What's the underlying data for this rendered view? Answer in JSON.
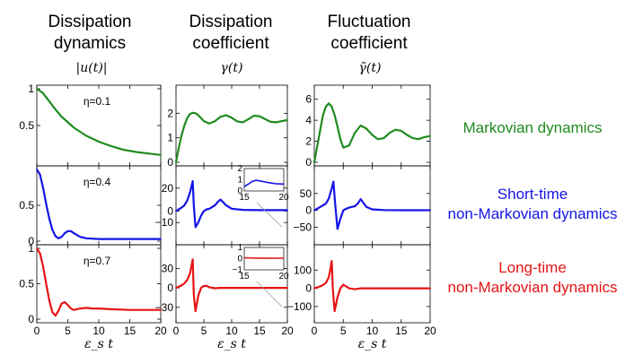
{
  "columns": [
    {
      "title_line1": "Dissipation",
      "title_line2": "dynamics",
      "symbol": "|u(t)|"
    },
    {
      "title_line1": "Dissipation",
      "title_line2": "coefficient",
      "symbol": "γ(t)"
    },
    {
      "title_line1": "Fluctuation",
      "title_line2": "coefficient",
      "symbol": "γ̃(t)"
    }
  ],
  "rows": [
    {
      "eta_label": "η=0.1",
      "color": "#1f8b1f",
      "label_line1": "Markovian dynamics",
      "label_line2": ""
    },
    {
      "eta_label": "η=0.4",
      "color": "#1414e6",
      "label_line1": "Short-time",
      "label_line2": "non-Markovian dynamics"
    },
    {
      "eta_label": "η=0.7",
      "color": "#e61414",
      "label_line1": "Long-time",
      "label_line2": "non-Markovian dynamics"
    }
  ],
  "xlabel": "ε_s t",
  "chart_data": [
    {
      "type": "line",
      "panel": "u-0.1",
      "xlim": [
        0,
        20
      ],
      "ylim": [
        0,
        1
      ],
      "yticks": [
        "0.5",
        "1"
      ],
      "x": [
        0,
        1,
        2,
        3,
        4,
        6,
        8,
        10,
        12,
        14,
        16,
        18,
        20
      ],
      "y": [
        1,
        0.94,
        0.83,
        0.72,
        0.62,
        0.47,
        0.36,
        0.28,
        0.22,
        0.17,
        0.14,
        0.12,
        0.1
      ]
    },
    {
      "type": "line",
      "panel": "u-0.4",
      "xlim": [
        0,
        20
      ],
      "ylim": [
        0,
        1
      ],
      "yticks": [
        "0.5",
        "0"
      ],
      "x": [
        0,
        0.5,
        1,
        1.5,
        2,
        2.5,
        3,
        3.5,
        4,
        4.5,
        5,
        5.5,
        6,
        7,
        8,
        10,
        14,
        20
      ],
      "y": [
        1,
        0.93,
        0.75,
        0.52,
        0.32,
        0.16,
        0.07,
        0.04,
        0.06,
        0.11,
        0.14,
        0.14,
        0.11,
        0.06,
        0.04,
        0.03,
        0.03,
        0.03
      ]
    },
    {
      "type": "line",
      "panel": "u-0.7",
      "xlim": [
        0,
        20
      ],
      "ylim": [
        0,
        1
      ],
      "yticks": [
        "0",
        "0.5",
        "1"
      ],
      "x": [
        0,
        0.5,
        1,
        1.5,
        2,
        2.5,
        3,
        3.5,
        4,
        4.5,
        5,
        5.5,
        6,
        7,
        8,
        9,
        10,
        12,
        15,
        20
      ],
      "y": [
        1,
        0.93,
        0.75,
        0.5,
        0.27,
        0.1,
        0.05,
        0.12,
        0.22,
        0.24,
        0.2,
        0.15,
        0.13,
        0.15,
        0.16,
        0.15,
        0.15,
        0.14,
        0.13,
        0.13
      ]
    },
    {
      "type": "line",
      "panel": "gamma-0.1",
      "xlim": [
        0,
        20
      ],
      "ylim": [
        0,
        3
      ],
      "yticks": [
        "0",
        "1",
        "2"
      ],
      "x": [
        0,
        0.5,
        1,
        1.5,
        2,
        2.5,
        3,
        3.5,
        4,
        4.5,
        5,
        6,
        7,
        8,
        9,
        10,
        11,
        12,
        13,
        14,
        15,
        16,
        17,
        18,
        19,
        20
      ],
      "y": [
        0,
        0.6,
        1.1,
        1.5,
        1.8,
        1.97,
        2.02,
        2.0,
        1.92,
        1.8,
        1.68,
        1.58,
        1.68,
        1.86,
        1.92,
        1.82,
        1.67,
        1.63,
        1.76,
        1.9,
        1.88,
        1.76,
        1.65,
        1.63,
        1.68,
        1.72
      ]
    },
    {
      "type": "line",
      "panel": "gamma-0.4",
      "xlim": [
        0,
        20
      ],
      "ylim": [
        -20,
        30
      ],
      "yticks": [
        "20",
        "0",
        "−10"
      ],
      "x": [
        0,
        0.5,
        1,
        1.5,
        2,
        2.5,
        2.8,
        3.0,
        3.2,
        3.5,
        4,
        4.5,
        5,
        5.5,
        6,
        7,
        7.5,
        8,
        9,
        10,
        12,
        15,
        20
      ],
      "y": [
        0,
        1.5,
        3,
        5,
        9,
        16,
        22,
        26,
        5,
        -14,
        -10,
        -4,
        0,
        1.5,
        2,
        5,
        8,
        10,
        5,
        2,
        1,
        0.8,
        0.8
      ],
      "inset": {
        "xlim": [
          15,
          20
        ],
        "ylim": [
          0,
          2
        ],
        "yticks": [
          "0",
          "1",
          "2"
        ],
        "xticks": [
          "15",
          "20"
        ],
        "x": [
          15,
          15.5,
          16,
          16.5,
          17,
          18,
          19,
          20
        ],
        "y": [
          0.4,
          0.6,
          0.85,
          0.95,
          0.9,
          0.75,
          0.65,
          0.62
        ]
      }
    },
    {
      "type": "line",
      "panel": "gamma-0.7",
      "xlim": [
        0,
        20
      ],
      "ylim": [
        -40,
        50
      ],
      "yticks": [
        "30",
        "0",
        "−30"
      ],
      "x": [
        0,
        0.5,
        1,
        1.5,
        2,
        2.5,
        2.8,
        3.0,
        3.2,
        3.5,
        4,
        4.5,
        5,
        5.5,
        6,
        7,
        8,
        10,
        15,
        20
      ],
      "y": [
        0,
        2,
        4,
        7,
        12,
        22,
        35,
        44,
        -10,
        -36,
        -12,
        0,
        3,
        3,
        1,
        -0.5,
        0,
        0,
        0,
        0
      ],
      "inset": {
        "xlim": [
          15,
          20
        ],
        "ylim": [
          -1,
          1
        ],
        "yticks": [
          "1",
          "0",
          "−1"
        ],
        "xticks": [
          "15",
          "20"
        ],
        "x": [
          15,
          16,
          17,
          18,
          19,
          20
        ],
        "y": [
          0.08,
          0.06,
          0.05,
          0.05,
          0.04,
          0.04
        ]
      }
    },
    {
      "type": "line",
      "panel": "gammatilde-0.1",
      "xlim": [
        0,
        20
      ],
      "ylim": [
        0,
        7
      ],
      "yticks": [
        "0",
        "2",
        "4",
        "6"
      ],
      "x": [
        0,
        0.5,
        1,
        1.5,
        2,
        2.5,
        3,
        3.5,
        4,
        4.5,
        5,
        6,
        7,
        8,
        9,
        10,
        11,
        12,
        13,
        14,
        15,
        16,
        17,
        18,
        19,
        20
      ],
      "y": [
        0,
        1.5,
        3,
        4.5,
        5.3,
        5.6,
        5.3,
        4.5,
        3.4,
        2.2,
        1.4,
        1.6,
        2.8,
        3.5,
        3.2,
        2.6,
        2.2,
        2.3,
        2.8,
        3.1,
        3.0,
        2.6,
        2.3,
        2.2,
        2.4,
        2.5
      ]
    },
    {
      "type": "line",
      "panel": "gammatilde-0.4",
      "xlim": [
        0,
        20
      ],
      "ylim": [
        -70,
        100
      ],
      "yticks": [
        "50",
        "0",
        "−50"
      ],
      "x": [
        0,
        0.5,
        1,
        1.5,
        2,
        2.5,
        3.0,
        3.3,
        3.6,
        4,
        4.5,
        5,
        5.5,
        6,
        7,
        7.5,
        8,
        9,
        10,
        12,
        15,
        20
      ],
      "y": [
        0,
        5,
        10,
        15,
        20,
        35,
        65,
        85,
        20,
        -55,
        -25,
        0,
        5,
        8,
        12,
        20,
        33,
        10,
        3,
        1,
        0.5,
        0.5
      ]
    },
    {
      "type": "line",
      "panel": "gammatilde-0.7",
      "xlim": [
        0,
        20
      ],
      "ylim": [
        -140,
        180
      ],
      "yticks": [
        "100",
        "0",
        "−100"
      ],
      "x": [
        0,
        0.5,
        1,
        1.5,
        2,
        2.5,
        2.8,
        3.0,
        3.2,
        3.5,
        4,
        4.5,
        5,
        5.5,
        6,
        7,
        8,
        10,
        15,
        20
      ],
      "y": [
        0,
        5,
        10,
        18,
        30,
        60,
        110,
        150,
        0,
        -125,
        -50,
        0,
        20,
        10,
        0,
        -5,
        0,
        0,
        0,
        0
      ]
    }
  ],
  "x_tick_labels": [
    "0",
    "5",
    "10",
    "15",
    "20"
  ]
}
